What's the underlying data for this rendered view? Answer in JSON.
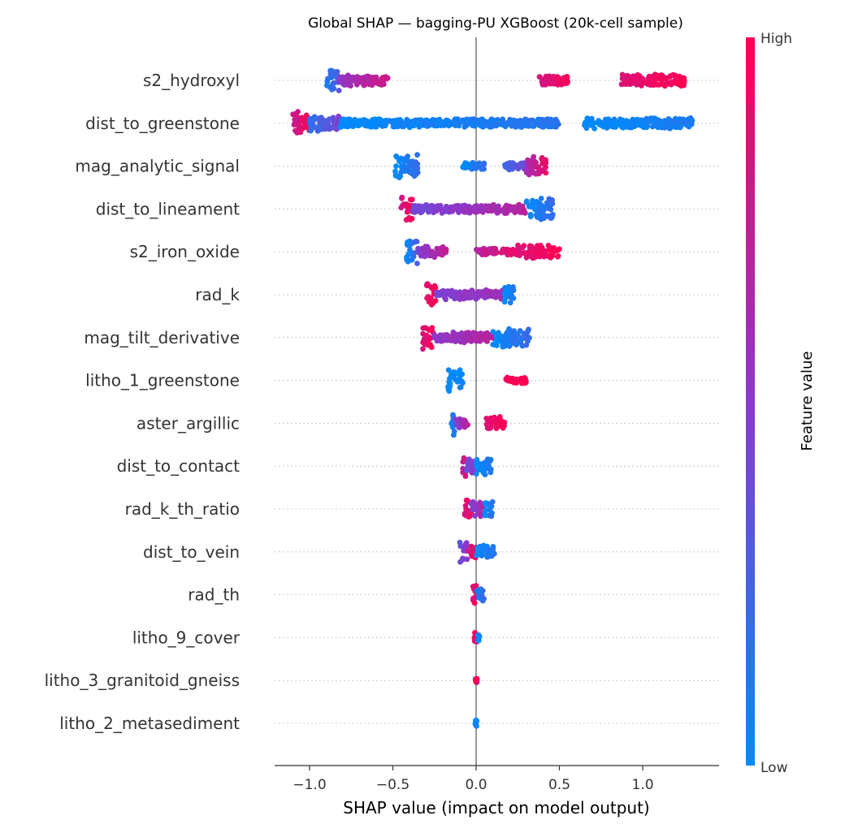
{
  "chart_data": {
    "type": "scatter",
    "subtype": "beeswarm",
    "title": "Global SHAP — bagging-PU XGBoost (20k-cell sample)",
    "xlabel": "SHAP value (impact on model output)",
    "ylabel": "",
    "xlim": [
      -1.2,
      1.45
    ],
    "xticks": [
      -1.0,
      -0.5,
      0.0,
      0.5,
      1.0
    ],
    "xtick_labels": [
      "−1.0",
      "−0.5",
      "0.0",
      "0.5",
      "1.0"
    ],
    "zero_line": 0.0,
    "grid": false,
    "colorbar": {
      "label": "Feature value",
      "high_label": "High",
      "low_label": "Low",
      "high_color": "#ff0052",
      "low_color": "#008bfb"
    },
    "features": [
      {
        "name": "s2_hydroxyl",
        "clusters": [
          {
            "x": [
              -0.9,
              -0.82
            ],
            "t": [
              0.1,
              0.3
            ],
            "w": 1.0
          },
          {
            "x": [
              -0.82,
              -0.53
            ],
            "t": [
              0.55,
              0.8
            ],
            "w": 0.45
          },
          {
            "x": [
              0.38,
              0.55
            ],
            "t": [
              0.8,
              0.95
            ],
            "w": 0.4
          },
          {
            "x": [
              0.87,
              1.25
            ],
            "t": [
              0.85,
              1.0
            ],
            "w": 0.5
          }
        ]
      },
      {
        "name": "dist_to_greenstone",
        "clusters": [
          {
            "x": [
              -1.1,
              -1.0
            ],
            "t": [
              0.75,
              1.0
            ],
            "w": 1.0
          },
          {
            "x": [
              -1.0,
              -0.82
            ],
            "t": [
              0.15,
              0.45
            ],
            "w": 0.7
          },
          {
            "x": [
              -0.82,
              0.5
            ],
            "t": [
              0.0,
              0.15
            ],
            "w": 0.35
          },
          {
            "x": [
              0.65,
              1.3
            ],
            "t": [
              0.0,
              0.1
            ],
            "w": 0.45
          }
        ]
      },
      {
        "name": "mag_analytic_signal",
        "clusters": [
          {
            "x": [
              -0.49,
              -0.35
            ],
            "t": [
              0.0,
              0.2
            ],
            "w": 1.0
          },
          {
            "x": [
              -0.08,
              0.05
            ],
            "t": [
              0.0,
              0.2
            ],
            "w": 0.3
          },
          {
            "x": [
              0.17,
              0.3
            ],
            "t": [
              0.2,
              0.4
            ],
            "w": 0.3
          },
          {
            "x": [
              0.3,
              0.42
            ],
            "t": [
              0.6,
              0.9
            ],
            "w": 0.8
          }
        ]
      },
      {
        "name": "dist_to_lineament",
        "clusters": [
          {
            "x": [
              -0.45,
              -0.38
            ],
            "t": [
              0.8,
              1.0
            ],
            "w": 1.0
          },
          {
            "x": [
              -0.38,
              0.3
            ],
            "t": [
              0.4,
              0.7
            ],
            "w": 0.35
          },
          {
            "x": [
              0.3,
              0.46
            ],
            "t": [
              0.0,
              0.2
            ],
            "w": 0.9
          }
        ]
      },
      {
        "name": "s2_iron_oxide",
        "clusters": [
          {
            "x": [
              -0.42,
              -0.35
            ],
            "t": [
              0.0,
              0.3
            ],
            "w": 1.0
          },
          {
            "x": [
              -0.35,
              -0.18
            ],
            "t": [
              0.45,
              0.75
            ],
            "w": 0.45
          },
          {
            "x": [
              0.0,
              0.25
            ],
            "t": [
              0.7,
              0.9
            ],
            "w": 0.3
          },
          {
            "x": [
              0.25,
              0.5
            ],
            "t": [
              0.85,
              1.0
            ],
            "w": 0.55
          }
        ]
      },
      {
        "name": "rad_k",
        "clusters": [
          {
            "x": [
              -0.3,
              -0.24
            ],
            "t": [
              0.85,
              1.0
            ],
            "w": 1.0
          },
          {
            "x": [
              -0.24,
              0.17
            ],
            "t": [
              0.45,
              0.6
            ],
            "w": 0.4
          },
          {
            "x": [
              0.17,
              0.23
            ],
            "t": [
              0.0,
              0.15
            ],
            "w": 0.85
          }
        ]
      },
      {
        "name": "mag_tilt_derivative",
        "clusters": [
          {
            "x": [
              -0.32,
              -0.25
            ],
            "t": [
              0.85,
              1.0
            ],
            "w": 1.0
          },
          {
            "x": [
              -0.25,
              0.1
            ],
            "t": [
              0.5,
              0.7
            ],
            "w": 0.45
          },
          {
            "x": [
              0.1,
              0.32
            ],
            "t": [
              0.0,
              0.2
            ],
            "w": 0.8
          }
        ]
      },
      {
        "name": "litho_1_greenstone",
        "clusters": [
          {
            "x": [
              -0.17,
              -0.08
            ],
            "t": [
              0.0,
              0.05
            ],
            "w": 0.9
          },
          {
            "x": [
              0.18,
              0.3
            ],
            "t": [
              0.95,
              1.0
            ],
            "w": 0.25
          }
        ]
      },
      {
        "name": "aster_argillic",
        "clusters": [
          {
            "x": [
              -0.15,
              -0.13
            ],
            "t": [
              0.0,
              0.15
            ],
            "w": 1.0
          },
          {
            "x": [
              -0.13,
              -0.05
            ],
            "t": [
              0.45,
              0.7
            ],
            "w": 0.45
          },
          {
            "x": [
              0.06,
              0.17
            ],
            "t": [
              0.85,
              1.0
            ],
            "w": 0.55
          }
        ]
      },
      {
        "name": "dist_to_contact",
        "clusters": [
          {
            "x": [
              -0.08,
              -0.06
            ],
            "t": [
              0.7,
              0.9
            ],
            "w": 1.0
          },
          {
            "x": [
              -0.06,
              0.0
            ],
            "t": [
              0.35,
              0.6
            ],
            "w": 0.6
          },
          {
            "x": [
              0.0,
              0.1
            ],
            "t": [
              0.0,
              0.15
            ],
            "w": 0.75
          }
        ]
      },
      {
        "name": "rad_k_th_ratio",
        "clusters": [
          {
            "x": [
              -0.08,
              -0.03
            ],
            "t": [
              0.8,
              1.0
            ],
            "w": 0.8
          },
          {
            "x": [
              -0.03,
              0.05
            ],
            "t": [
              0.45,
              0.7
            ],
            "w": 0.6
          },
          {
            "x": [
              0.05,
              0.1
            ],
            "t": [
              0.0,
              0.15
            ],
            "w": 0.75
          }
        ]
      },
      {
        "name": "dist_to_vein",
        "clusters": [
          {
            "x": [
              -0.1,
              -0.05
            ],
            "t": [
              0.35,
              0.55
            ],
            "w": 1.0
          },
          {
            "x": [
              -0.05,
              0.0
            ],
            "t": [
              0.8,
              1.0
            ],
            "w": 0.55
          },
          {
            "x": [
              0.0,
              0.11
            ],
            "t": [
              0.0,
              0.15
            ],
            "w": 0.55
          }
        ]
      },
      {
        "name": "rad_th",
        "clusters": [
          {
            "x": [
              -0.02,
              0.0
            ],
            "t": [
              0.85,
              1.0
            ],
            "w": 0.8
          },
          {
            "x": [
              0.0,
              0.05
            ],
            "t": [
              0.05,
              0.25
            ],
            "w": 0.5
          }
        ]
      },
      {
        "name": "litho_9_cover",
        "clusters": [
          {
            "x": [
              -0.01,
              0.01
            ],
            "t": [
              0.9,
              1.0
            ],
            "w": 0.5
          },
          {
            "x": [
              0.01,
              0.02
            ],
            "t": [
              0.0,
              0.05
            ],
            "w": 0.35
          }
        ]
      },
      {
        "name": "litho_3_granitoid_gneiss",
        "clusters": [
          {
            "x": [
              -0.005,
              0.005
            ],
            "t": [
              0.0,
              0.05
            ],
            "w": 0.2
          },
          {
            "x": [
              -0.005,
              0.005
            ],
            "t": [
              0.95,
              1.0
            ],
            "w": 0.2
          }
        ]
      },
      {
        "name": "litho_2_metasediment",
        "clusters": [
          {
            "x": [
              -0.005,
              0.005
            ],
            "t": [
              0.0,
              0.05
            ],
            "w": 0.25
          }
        ]
      }
    ]
  }
}
